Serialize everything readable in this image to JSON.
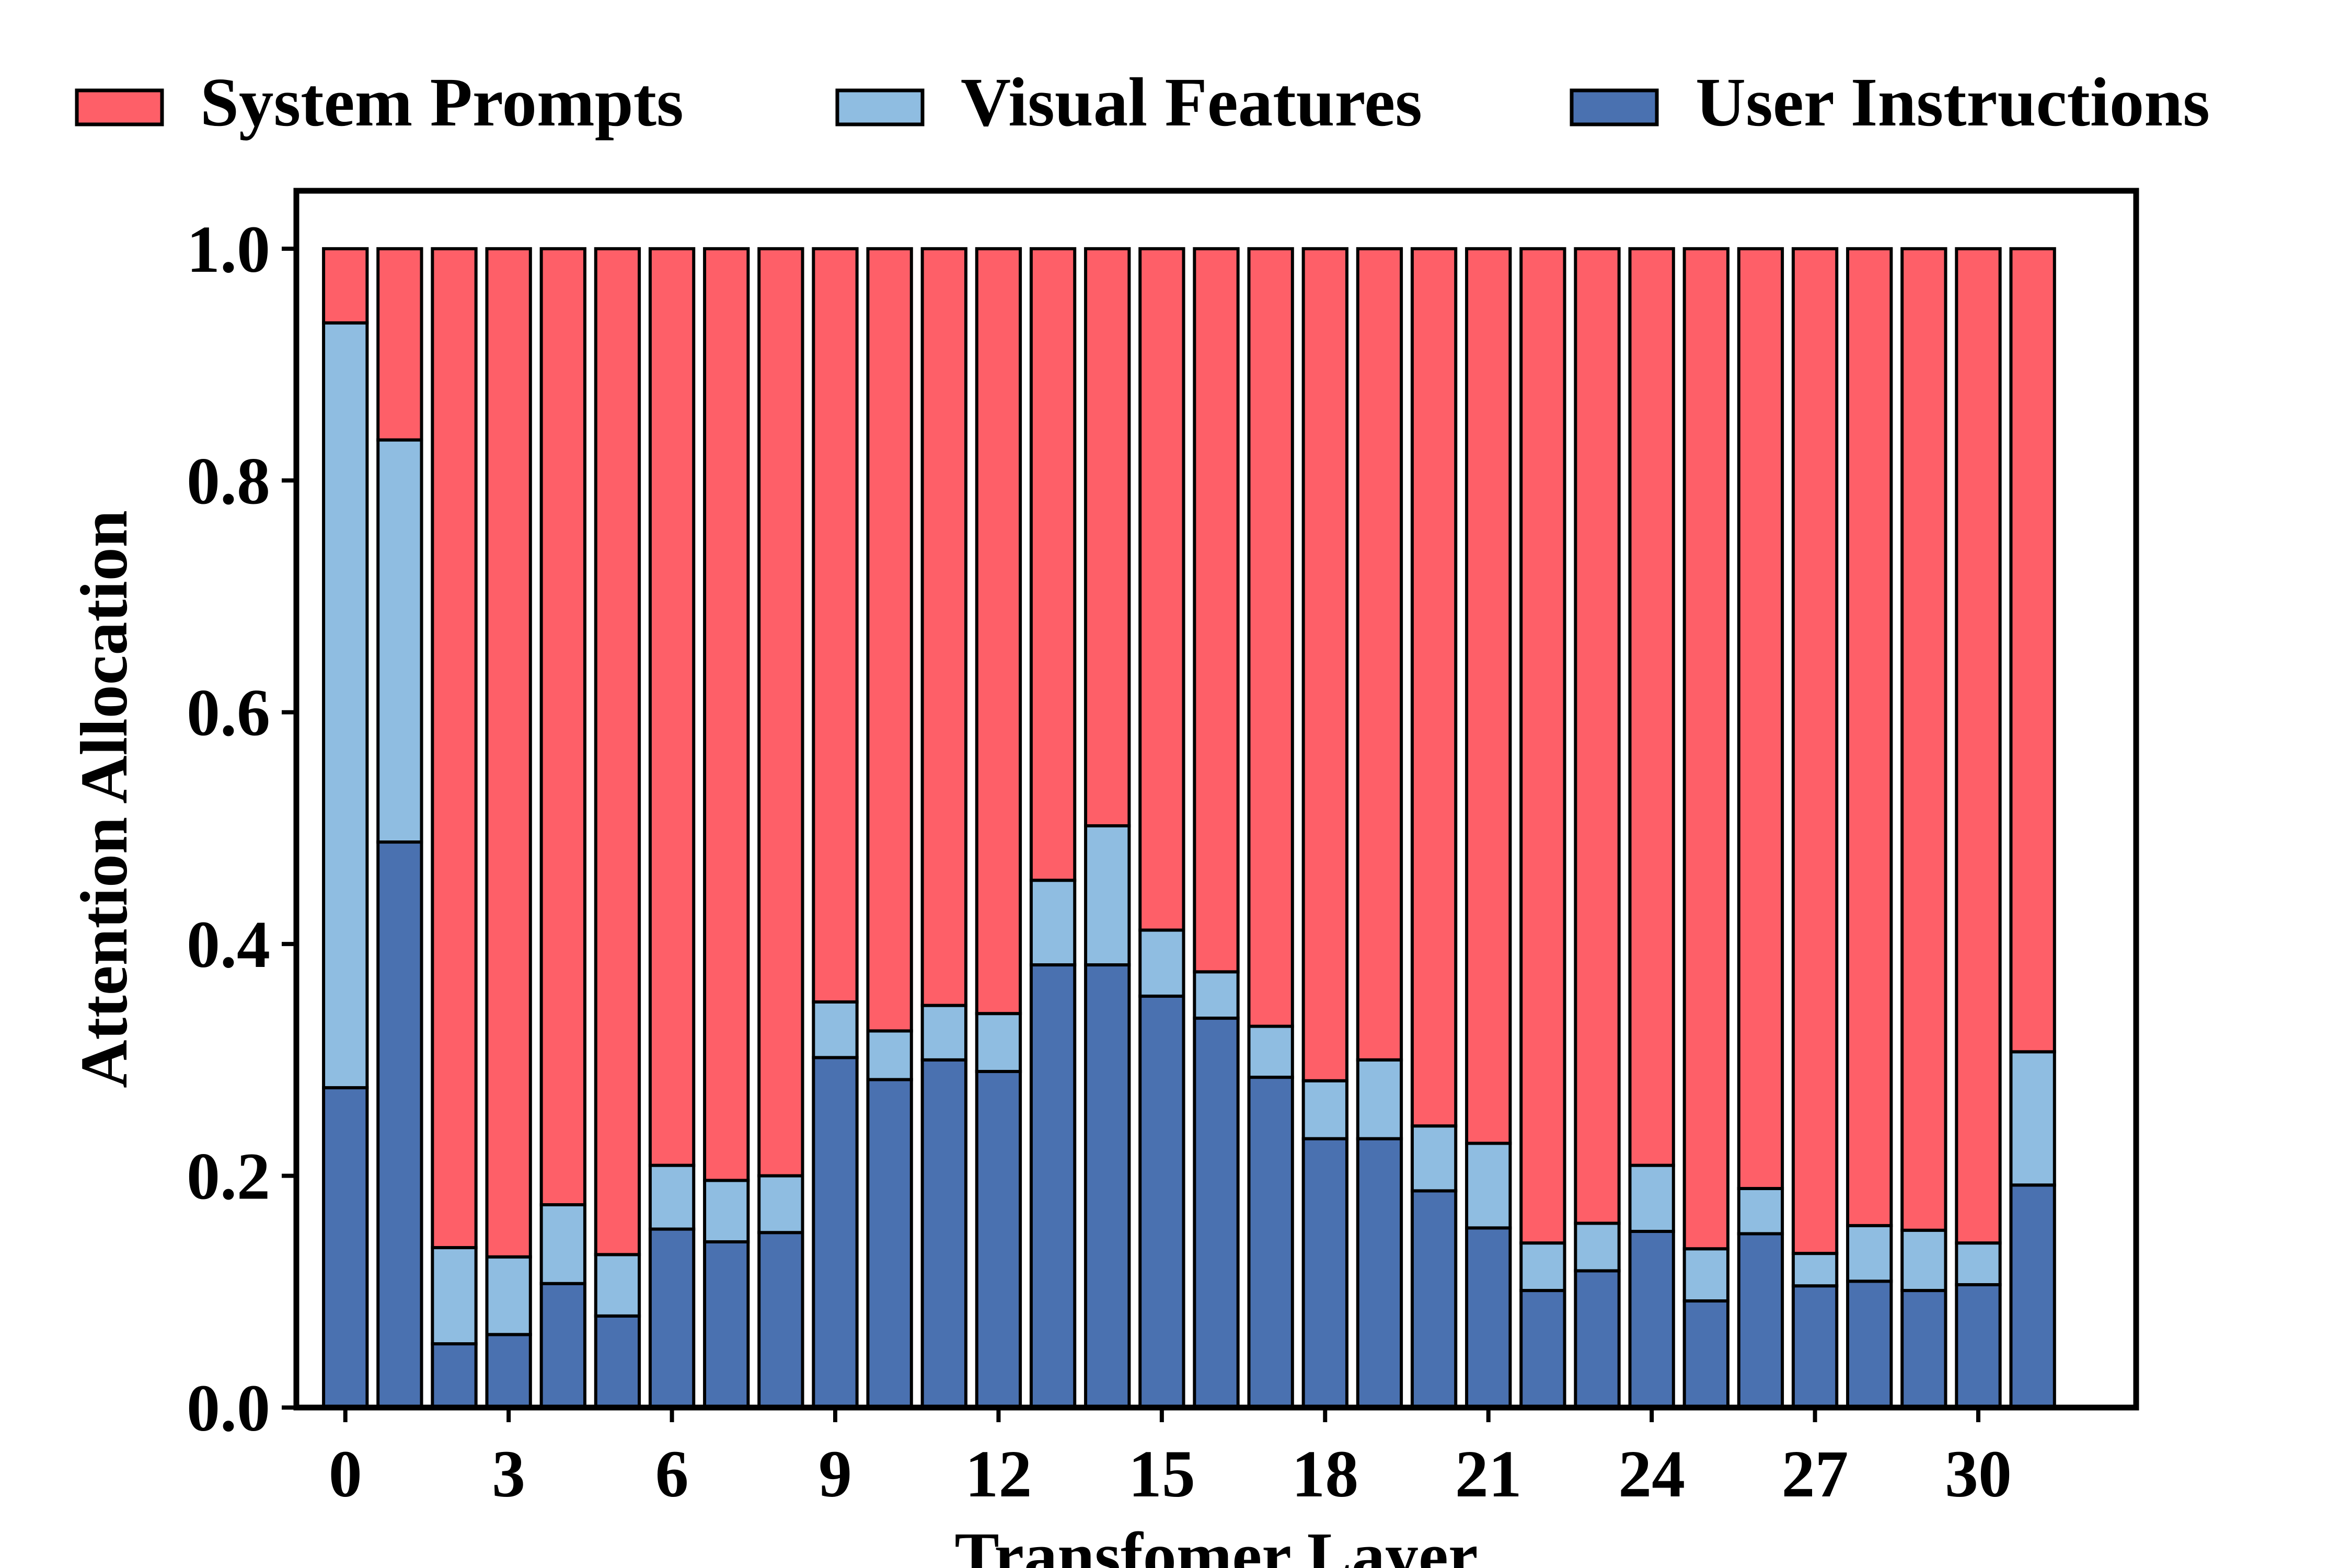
{
  "colors": {
    "system_prompts": "#fe5f68",
    "visual_features": "#8fbde1",
    "user_instructions": "#4a71b0",
    "edge": "#000000"
  },
  "legend": [
    {
      "key": "system",
      "label": "System Prompts",
      "color": "#fe5f68"
    },
    {
      "key": "visual",
      "label": "Visual Features",
      "color": "#8fbde1"
    },
    {
      "key": "user",
      "label": "User Instructions",
      "color": "#4a71b0"
    }
  ],
  "chart_data": {
    "type": "bar",
    "stacked": true,
    "xlabel": "Transfomer Layer",
    "ylabel": "Attention Allocation",
    "ylim": [
      0.0,
      1.05
    ],
    "xlim": [
      -0.9,
      32.9
    ],
    "xticks": [
      0,
      3,
      6,
      9,
      12,
      15,
      18,
      21,
      24,
      27,
      30
    ],
    "xtick_labels": [
      "0",
      "3",
      "6",
      "9",
      "12",
      "15",
      "18",
      "21",
      "24",
      "27",
      "30"
    ],
    "yticks": [
      0.0,
      0.2,
      0.4,
      0.6,
      0.8,
      1.0
    ],
    "ytick_labels": [
      "0.0",
      "0.2",
      "0.4",
      "0.6",
      "0.8",
      "1.0"
    ],
    "legend_position": "top (above plot)",
    "grid": false,
    "categories": [
      0,
      1,
      2,
      3,
      4,
      5,
      6,
      7,
      8,
      9,
      10,
      11,
      12,
      13,
      14,
      15,
      16,
      17,
      18,
      19,
      20,
      21,
      22,
      23,
      24,
      25,
      26,
      27,
      28,
      29,
      30,
      31
    ],
    "series": [
      {
        "name": "User Instructions",
        "values": [
          0.276,
          0.488,
          0.055,
          0.063,
          0.107,
          0.079,
          0.154,
          0.143,
          0.151,
          0.302,
          0.283,
          0.3,
          0.29,
          0.382,
          0.382,
          0.355,
          0.336,
          0.285,
          0.232,
          0.232,
          0.187,
          0.155,
          0.101,
          0.118,
          0.152,
          0.092,
          0.15,
          0.105,
          0.109,
          0.101,
          0.106,
          0.192
        ]
      },
      {
        "name": "Visual Features",
        "values": [
          0.66,
          0.347,
          0.083,
          0.067,
          0.068,
          0.053,
          0.055,
          0.053,
          0.049,
          0.048,
          0.042,
          0.047,
          0.05,
          0.073,
          0.12,
          0.057,
          0.04,
          0.044,
          0.05,
          0.068,
          0.056,
          0.073,
          0.041,
          0.041,
          0.057,
          0.045,
          0.039,
          0.028,
          0.048,
          0.052,
          0.036,
          0.115
        ]
      },
      {
        "name": "System Prompts",
        "values": [
          0.064,
          0.165,
          0.862,
          0.87,
          0.825,
          0.868,
          0.791,
          0.804,
          0.8,
          0.65,
          0.675,
          0.653,
          0.66,
          0.545,
          0.498,
          0.588,
          0.624,
          0.671,
          0.718,
          0.7,
          0.757,
          0.772,
          0.858,
          0.841,
          0.791,
          0.863,
          0.811,
          0.867,
          0.843,
          0.847,
          0.858,
          0.693
        ]
      }
    ]
  }
}
